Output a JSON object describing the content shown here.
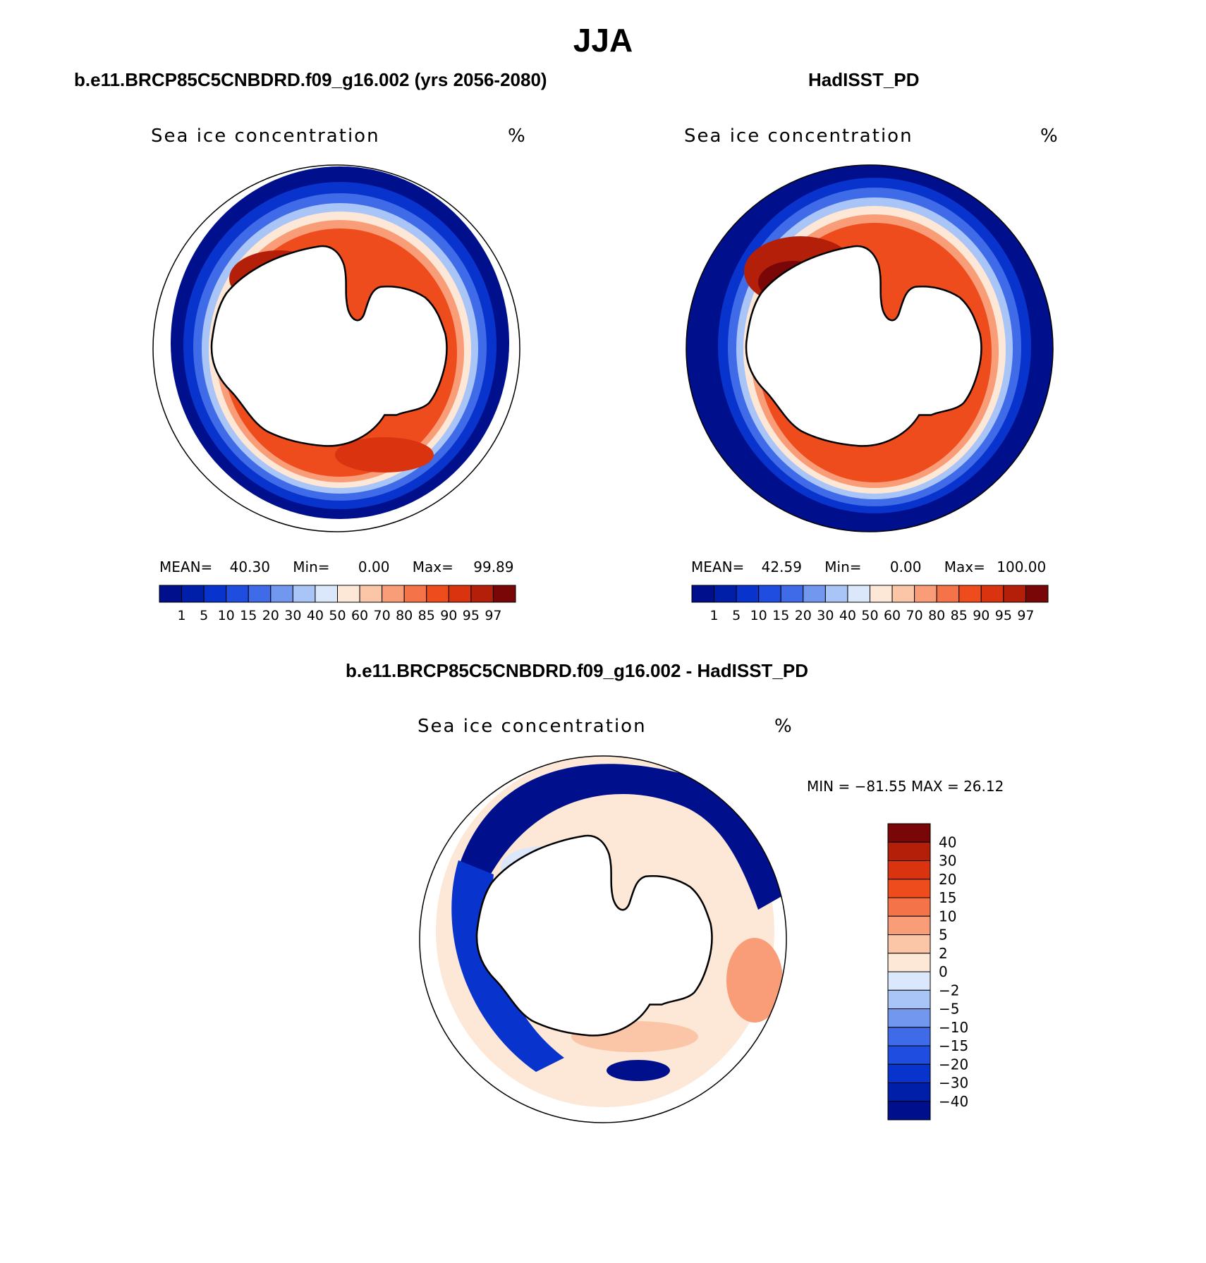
{
  "title": "JJA",
  "panel_left": {
    "subtitle": "b.e11.BRCP85C5CNBDRD.f09_g16.002 (yrs 2056-2080)",
    "variable": "Sea ice concentration",
    "units": "%",
    "stats": {
      "mean_label": "MEAN=",
      "mean": "40.30",
      "min_label": "Min=",
      "min": "0.00",
      "max_label": "Max=",
      "max": "99.89"
    }
  },
  "panel_right": {
    "subtitle": "HadISST_PD",
    "variable": "Sea ice concentration",
    "units": "%",
    "stats": {
      "mean_label": "MEAN=",
      "mean": "42.59",
      "min_label": "Min=",
      "min": "0.00",
      "max_label": "Max=",
      "max": "100.00"
    }
  },
  "panel_diff": {
    "subtitle": "b.e11.BRCP85C5CNBDRD.f09_g16.002 - HadISST_PD",
    "variable": "Sea ice concentration",
    "units": "%",
    "minmax": "MIN = −81.55 MAX =   26.12"
  },
  "colorbar_main": {
    "levels": [
      "1",
      "5",
      "10",
      "15",
      "20",
      "30",
      "40",
      "50",
      "60",
      "70",
      "80",
      "85",
      "90",
      "95",
      "97"
    ],
    "colors": [
      "#00108c",
      "#001fa8",
      "#0833cc",
      "#1f4ddf",
      "#3f6be8",
      "#7297ef",
      "#a9c4f6",
      "#dbe8fb",
      "#fde7d6",
      "#fbc5a8",
      "#f89d78",
      "#f47348",
      "#ef4c1d",
      "#d9330f",
      "#b41f0a",
      "#7a0707"
    ]
  },
  "colorbar_diff": {
    "levels": [
      "40",
      "30",
      "20",
      "15",
      "10",
      "5",
      "2",
      "0",
      "−2",
      "−5",
      "−10",
      "−15",
      "−20",
      "−30",
      "−40"
    ],
    "colors": [
      "#7a0707",
      "#b41f0a",
      "#d9330f",
      "#ef4c1d",
      "#f47348",
      "#f89d78",
      "#fbc5a8",
      "#fde7d6",
      "#dbe8fb",
      "#a9c4f6",
      "#7297ef",
      "#3f6be8",
      "#1f4ddf",
      "#0833cc",
      "#001fa8",
      "#00108c"
    ]
  }
}
